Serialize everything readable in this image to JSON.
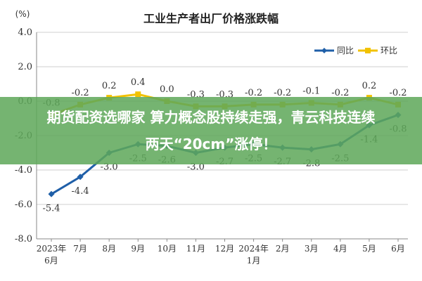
{
  "chart_data": {
    "type": "line",
    "title": "工业生产者出厂价格涨跌幅",
    "ylabel": "(%)",
    "ylim": [
      -8.0,
      4.0
    ],
    "yticks": [
      "4.0",
      "2.0",
      "0.0",
      "-2.0",
      "-4.0",
      "-6.0",
      "-8.0"
    ],
    "grid": true,
    "legend_position": "top-right",
    "categories": [
      [
        "2023年",
        "6月"
      ],
      [
        "7月"
      ],
      [
        "8月"
      ],
      [
        "9月"
      ],
      [
        "10月"
      ],
      [
        "11月"
      ],
      [
        "12月"
      ],
      [
        "2024年",
        "1月"
      ],
      [
        "2月"
      ],
      [
        "3月"
      ],
      [
        "4月"
      ],
      [
        "5月"
      ],
      [
        "6月"
      ]
    ],
    "series": [
      {
        "name": "同比",
        "color": "#1f5fa8",
        "values": [
          -5.4,
          -4.4,
          -3.0,
          -2.5,
          -2.6,
          -3.0,
          -2.7,
          -2.5,
          -2.7,
          -2.8,
          -2.5,
          -1.4,
          -0.8
        ],
        "labels": [
          "-5.4",
          "-4.4",
          "-3.0",
          "-2.5",
          "-2.6",
          "-3.0",
          "-2.7",
          "-2.5",
          "-2.7",
          "-2.8",
          "-2.5",
          "-1.4",
          "-0.8"
        ]
      },
      {
        "name": "环比",
        "color": "#f2c200",
        "values": [
          -0.8,
          -0.2,
          0.2,
          0.4,
          0.0,
          -0.3,
          -0.3,
          -0.2,
          -0.2,
          -0.1,
          -0.2,
          0.2,
          -0.2
        ],
        "labels": [
          "-0.8",
          "-0.2",
          "0.2",
          "0.4",
          "0.0",
          "-0.3",
          "-0.3",
          "-0.2",
          "-0.2",
          "-0.1",
          "-0.2",
          "0.2",
          "-0.2"
        ]
      }
    ]
  },
  "banner": {
    "line1": "期货配资选哪家 算力概念股持续走强，青云科技连续",
    "line2": "两天“20cm”涨停！"
  }
}
